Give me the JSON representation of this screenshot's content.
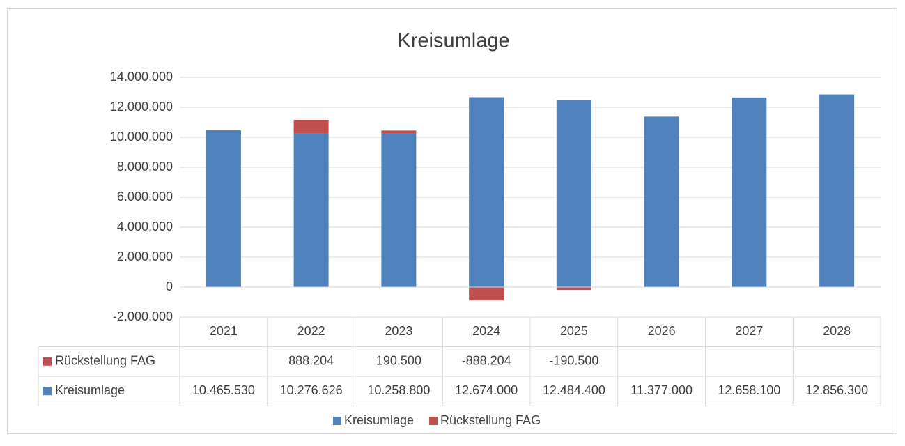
{
  "chart_data": {
    "type": "bar",
    "stacked": true,
    "title": "Kreisumlage",
    "categories": [
      "2021",
      "2022",
      "2023",
      "2024",
      "2025",
      "2026",
      "2027",
      "2028"
    ],
    "series": [
      {
        "name": "Kreisumlage",
        "color": "#4f81bd",
        "values": [
          10465530,
          10276626,
          10258800,
          12674000,
          12484400,
          11377000,
          12658100,
          12856300
        ],
        "value_labels": [
          "10.465.530",
          "10.276.626",
          "10.258.800",
          "12.674.000",
          "12.484.400",
          "11.377.000",
          "12.658.100",
          "12.856.300"
        ]
      },
      {
        "name": "Rückstellung FAG",
        "color": "#c0504d",
        "values": [
          null,
          888204,
          190500,
          -888204,
          -190500,
          null,
          null,
          null
        ],
        "value_labels": [
          null,
          "888.204",
          "190.500",
          "-888.204",
          "-190.500",
          null,
          null,
          null
        ]
      }
    ],
    "ylim": [
      -2000000,
      14000000
    ],
    "yticks": [
      {
        "value": -2000000,
        "label": "-2.000.000"
      },
      0,
      {
        "value": 2000000,
        "label": "2.000.000"
      },
      {
        "value": 4000000,
        "label": "4.000.000"
      },
      {
        "value": 6000000,
        "label": "6.000.000"
      },
      {
        "value": 8000000,
        "label": "8.000.000"
      },
      {
        "value": 10000000,
        "label": "10.000.000"
      },
      {
        "value": 12000000,
        "label": "12.000.000"
      },
      {
        "value": 14000000,
        "label": "14.000.000"
      }
    ],
    "grid": true,
    "legend": "bottom",
    "data_table": true
  }
}
